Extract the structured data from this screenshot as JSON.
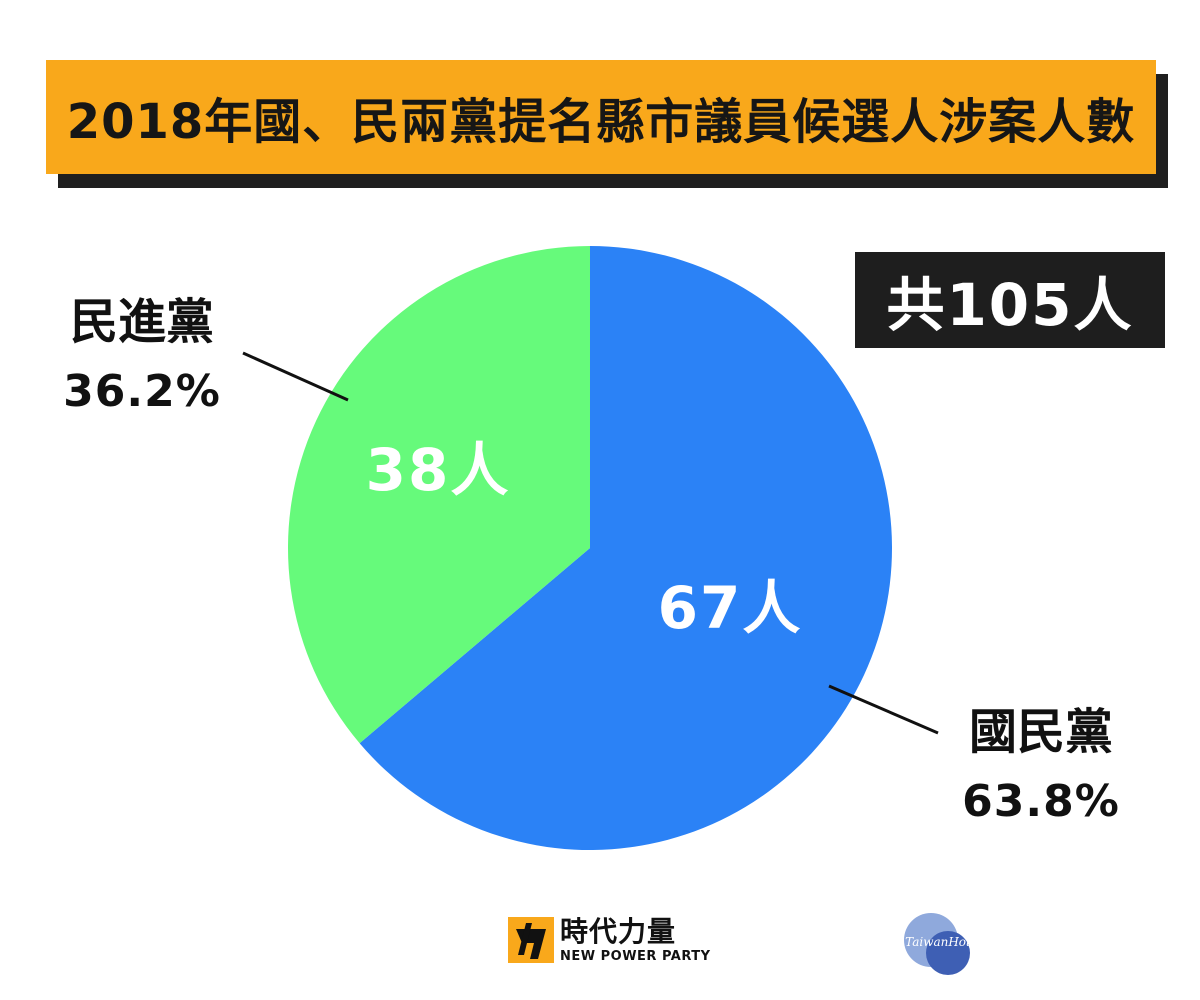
{
  "title": "2018年國、民兩黨提名縣市議員候選人涉案人數",
  "total_label": "共105人",
  "chart_data": {
    "type": "pie",
    "title": "2018年國、民兩黨提名縣市議員候選人涉案人數",
    "total": 105,
    "start": "12 o'clock, clockwise",
    "slices": [
      {
        "name": "國民黨",
        "value": 67,
        "label": "67人",
        "percent_label": "63.8%",
        "color": "#2b82f6"
      },
      {
        "name": "民進黨",
        "value": 38,
        "label": "38人",
        "percent_label": "36.2%",
        "color": "#66fa7b"
      }
    ]
  },
  "legend": {
    "dpp_name": "民進黨",
    "dpp_pct": "36.2%",
    "kmt_name": "國民黨",
    "kmt_pct": "63.8%"
  },
  "logo": {
    "name_zh": "時代力量",
    "name_en": "NEW POWER PARTY",
    "accent_color": "#f9a81b"
  },
  "watermark": {
    "text": "TaiwanHot"
  }
}
